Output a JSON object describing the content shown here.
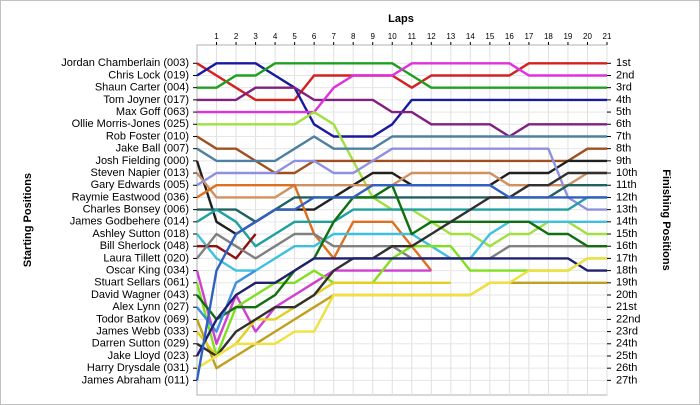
{
  "chart_data": {
    "type": "line",
    "title": "Laps",
    "y_label": "Starting Positions",
    "y2_label": "Finishing Positions",
    "x": [
      0,
      1,
      2,
      3,
      4,
      5,
      6,
      7,
      8,
      9,
      10,
      11,
      12,
      13,
      14,
      15,
      16,
      17,
      18,
      19,
      20,
      21
    ],
    "xlim": [
      0,
      21
    ],
    "xticks": [
      1,
      2,
      3,
      4,
      5,
      6,
      7,
      8,
      9,
      10,
      11,
      12,
      13,
      14,
      15,
      16,
      17,
      18,
      19,
      20,
      21
    ],
    "ylim": [
      -0.5,
      28.2
    ],
    "y_inverted": true,
    "grid": true,
    "y2lim": [
      -0.5,
      28.2
    ],
    "y2ticks": [
      {
        "value": 1,
        "label": "1st"
      },
      {
        "value": 2,
        "label": "2nd"
      },
      {
        "value": 3,
        "label": "3rd"
      },
      {
        "value": 4,
        "label": "4th"
      },
      {
        "value": 5,
        "label": "5th"
      },
      {
        "value": 6,
        "label": "6th"
      },
      {
        "value": 7,
        "label": "7th"
      },
      {
        "value": 8,
        "label": "8th"
      },
      {
        "value": 9,
        "label": "9th"
      },
      {
        "value": 10,
        "label": "10th"
      },
      {
        "value": 11,
        "label": "11th"
      },
      {
        "value": 12,
        "label": "12th"
      },
      {
        "value": 13,
        "label": "13th"
      },
      {
        "value": 14,
        "label": "14th"
      },
      {
        "value": 15,
        "label": "15th"
      },
      {
        "value": 16,
        "label": "16th"
      },
      {
        "value": 17,
        "label": "17th"
      },
      {
        "value": 18,
        "label": "18th"
      },
      {
        "value": 19,
        "label": "19th"
      },
      {
        "value": 20,
        "label": "20th"
      },
      {
        "value": 21,
        "label": "21st"
      },
      {
        "value": 22,
        "label": "22nd"
      },
      {
        "value": 23,
        "label": "23rd"
      },
      {
        "value": 24,
        "label": "24th"
      },
      {
        "value": 25,
        "label": "25th"
      },
      {
        "value": 26,
        "label": "26th"
      },
      {
        "value": 27,
        "label": "27th"
      }
    ],
    "series": [
      {
        "name": "Jordan Chamberlain (003)",
        "color": "#d42020",
        "values": [
          1,
          2,
          3,
          4,
          4,
          4,
          2,
          2,
          2,
          2,
          2,
          3,
          2,
          2,
          2,
          2,
          2,
          1,
          1,
          1,
          1,
          1
        ]
      },
      {
        "name": "Chris Lock (019)",
        "color": "#1a1aa0",
        "values": [
          2,
          1,
          1,
          1,
          2,
          3,
          6,
          7,
          7,
          7,
          6,
          4,
          4,
          4,
          4,
          4,
          4,
          4,
          4,
          4,
          4,
          4
        ]
      },
      {
        "name": "Shaun Carter (004)",
        "color": "#20a020",
        "values": [
          3,
          3,
          2,
          2,
          1,
          1,
          1,
          1,
          1,
          1,
          1,
          2,
          3,
          3,
          3,
          3,
          3,
          3,
          3,
          3,
          3,
          3
        ]
      },
      {
        "name": "Tom Joyner (017)",
        "color": "#802080",
        "values": [
          4,
          4,
          4,
          3,
          3,
          3,
          4,
          4,
          4,
          4,
          5,
          5,
          6,
          6,
          6,
          6,
          7,
          6,
          6,
          6,
          6,
          6
        ]
      },
      {
        "name": "Max Goff (063)",
        "color": "#e030e0",
        "values": [
          5,
          5,
          5,
          5,
          5,
          5,
          5,
          3,
          2,
          2,
          2,
          1,
          1,
          1,
          1,
          1,
          1,
          2,
          2,
          2,
          2,
          2
        ]
      },
      {
        "name": "Ollie Morris-Jones (025)",
        "color": "#a0e040",
        "values": [
          6,
          6,
          6,
          6,
          6,
          6,
          5,
          6,
          9,
          12,
          13,
          13,
          14,
          15,
          15,
          16,
          15,
          15,
          14,
          14,
          15,
          15
        ]
      },
      {
        "name": "Rob Foster (010)",
        "color": "#a05020",
        "values": [
          7,
          8,
          8,
          9,
          10,
          10,
          9,
          9,
          9,
          9,
          9,
          9,
          9,
          9,
          9,
          9,
          9,
          9,
          9,
          9,
          8,
          8
        ]
      },
      {
        "name": "Jake Ball (007)",
        "color": "#5080a0",
        "values": [
          8,
          9,
          9,
          9,
          9,
          8,
          7,
          8,
          8,
          8,
          7,
          7,
          7,
          7,
          7,
          7,
          7,
          7,
          7,
          7,
          7,
          7
        ]
      },
      {
        "name": "Josh Fielding (000)",
        "color": "#202020",
        "values": [
          9,
          14,
          15,
          14,
          13,
          13,
          13,
          12,
          11,
          10,
          10,
          11,
          11,
          11,
          11,
          11,
          10,
          10,
          10,
          9,
          9,
          9
        ]
      },
      {
        "name": "Steven Napier (013)",
        "color": "#d09060",
        "values": [
          10,
          12,
          12,
          12,
          12,
          11,
          11,
          11,
          11,
          11,
          11,
          10,
          10,
          10,
          10,
          10,
          11,
          11,
          11,
          11,
          10,
          10
        ]
      },
      {
        "name": "Gary Edwards (005)",
        "color": "#9090e0",
        "values": [
          11,
          10,
          10,
          10,
          10,
          9,
          9,
          10,
          10,
          9,
          8,
          8,
          8,
          8,
          8,
          8,
          8,
          8,
          8,
          12,
          13,
          13
        ]
      },
      {
        "name": "Raymie Eastwood (036)",
        "color": "#e07020",
        "values": [
          12,
          11,
          11,
          11,
          11,
          11,
          15,
          17,
          14,
          14,
          14,
          16,
          18,
          null,
          null,
          null,
          null,
          null,
          null,
          null,
          null,
          null
        ]
      },
      {
        "name": "Charles Bonsey (006)",
        "color": "#206060",
        "values": [
          13,
          13,
          13,
          14,
          13,
          12,
          12,
          12,
          12,
          12,
          12,
          12,
          12,
          12,
          12,
          12,
          12,
          12,
          12,
          11,
          11,
          11
        ]
      },
      {
        "name": "James Godbehere (014)",
        "color": "#20a0a0",
        "values": [
          14,
          13,
          14,
          16,
          15,
          14,
          14,
          14,
          13,
          13,
          13,
          13,
          13,
          13,
          13,
          13,
          13,
          13,
          13,
          13,
          12,
          12
        ]
      },
      {
        "name": "Ashley Sutton (018)",
        "color": "#40c0e0",
        "values": [
          15,
          17,
          18,
          18,
          17,
          16,
          16,
          15,
          15,
          15,
          15,
          15,
          16,
          17,
          17,
          15,
          14,
          14,
          14,
          14,
          14,
          14
        ]
      },
      {
        "name": "Bill Sherlock (048)",
        "color": "#901010",
        "values": [
          16,
          16,
          17,
          15,
          null,
          null,
          null,
          null,
          null,
          null,
          null,
          null,
          null,
          null,
          null,
          null,
          null,
          null,
          null,
          null,
          null,
          null
        ]
      },
      {
        "name": "Laura Tillett (020)",
        "color": "#808080",
        "values": [
          17,
          15,
          16,
          17,
          16,
          15,
          15,
          16,
          16,
          16,
          16,
          17,
          17,
          17,
          17,
          17,
          16,
          16,
          16,
          16,
          16,
          16
        ]
      },
      {
        "name": "Oscar King (034)",
        "color": "#d040d0",
        "values": [
          18,
          24,
          20,
          23,
          21,
          20,
          19,
          18,
          18,
          18,
          18,
          18,
          18,
          null,
          null,
          null,
          null,
          null,
          null,
          null,
          null,
          null
        ]
      },
      {
        "name": "Stuart Sellars (061)",
        "color": "#80e020",
        "values": [
          19,
          25,
          21,
          20,
          19,
          19,
          18,
          19,
          19,
          19,
          17,
          16,
          16,
          16,
          18,
          18,
          18,
          18,
          18,
          18,
          17,
          17
        ]
      },
      {
        "name": "David Wagner (043)",
        "color": "#107010",
        "values": [
          20,
          22,
          21,
          21,
          20,
          18,
          17,
          14,
          12,
          12,
          11,
          15,
          14,
          14,
          14,
          14,
          14,
          14,
          15,
          15,
          16,
          16
        ]
      },
      {
        "name": "Alex Lynn (027)",
        "color": "#4090e0",
        "values": [
          21,
          23,
          19,
          18,
          null,
          null,
          null,
          null,
          null,
          null,
          null,
          null,
          null,
          null,
          null,
          null,
          null,
          null,
          null,
          null,
          null,
          null
        ]
      },
      {
        "name": "Todor Batkov (069)",
        "color": "#c0a020",
        "values": [
          22,
          26,
          25,
          24,
          23,
          22,
          21,
          20,
          20,
          20,
          20,
          20,
          20,
          20,
          20,
          19,
          19,
          19,
          19,
          19,
          19,
          19
        ]
      },
      {
        "name": "James Webb (033)",
        "color": "#e0d020",
        "values": [
          23,
          25,
          24,
          22,
          22,
          21,
          20,
          19,
          19,
          19,
          19,
          19,
          19,
          19,
          null,
          null,
          null,
          null,
          null,
          null,
          null,
          null
        ]
      },
      {
        "name": "Darren Sutton (029)",
        "color": "#303030",
        "values": [
          24,
          25,
          23,
          22,
          21,
          21,
          20,
          18,
          17,
          17,
          16,
          16,
          15,
          14,
          13,
          12,
          12,
          11,
          11,
          10,
          10,
          10
        ]
      },
      {
        "name": "Jake Lloyd (023)",
        "color": "#202070",
        "values": [
          25,
          22,
          20,
          19,
          19,
          18,
          17,
          17,
          17,
          17,
          17,
          17,
          17,
          17,
          17,
          17,
          17,
          17,
          17,
          17,
          18,
          18
        ]
      },
      {
        "name": "Harry Drysdale (031)",
        "color": "#f0e040",
        "values": [
          26,
          25,
          24,
          24,
          24,
          23,
          23,
          20,
          20,
          20,
          20,
          20,
          20,
          20,
          20,
          19,
          19,
          18,
          18,
          18,
          17,
          17
        ]
      },
      {
        "name": "James Abraham (011)",
        "color": "#3060c0",
        "values": [
          27,
          18,
          15,
          14,
          13,
          13,
          12,
          12,
          12,
          11,
          11,
          11,
          11,
          11,
          11,
          11,
          12,
          12,
          12,
          12,
          12,
          12
        ]
      }
    ]
  }
}
